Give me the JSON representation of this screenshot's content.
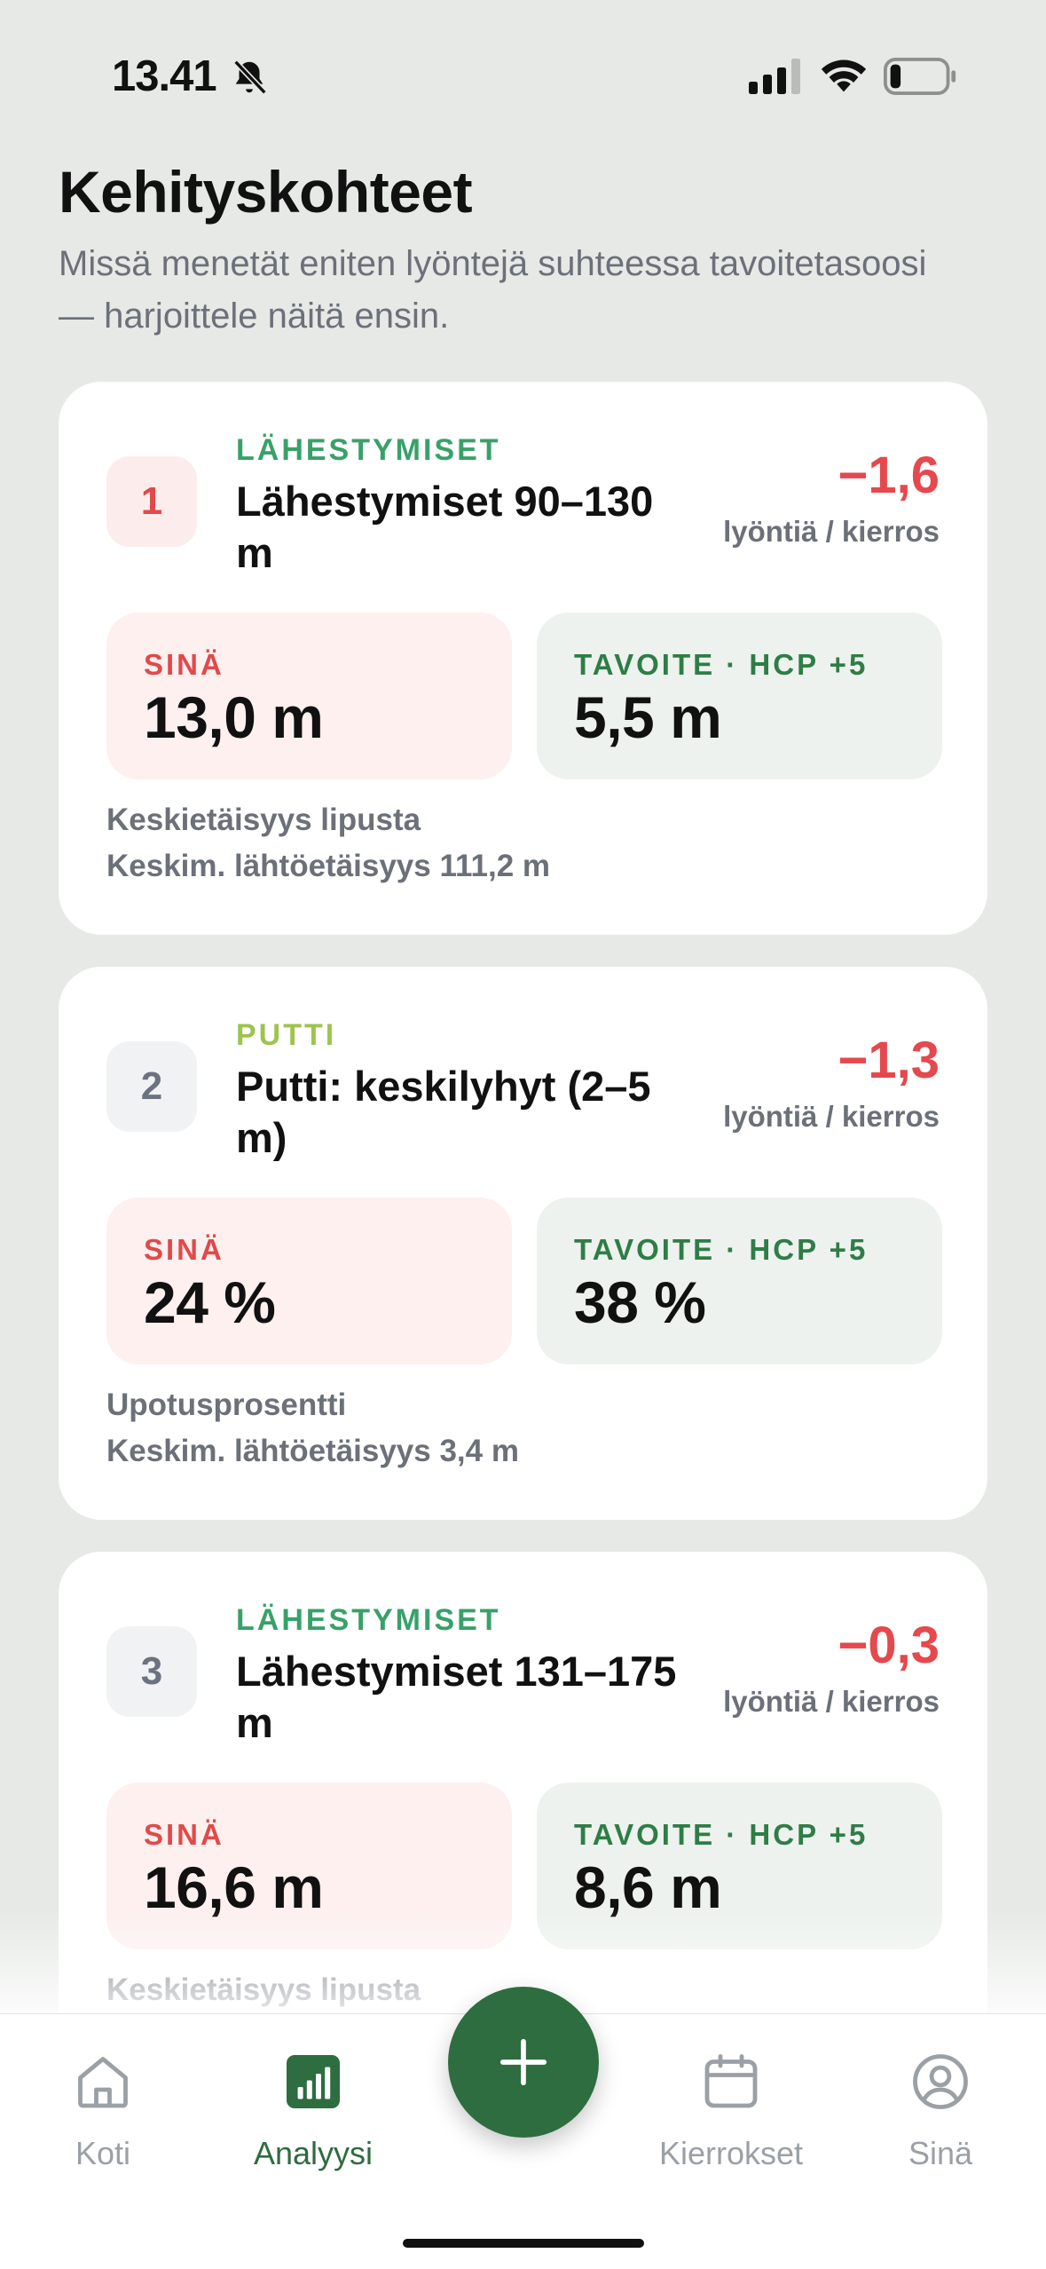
{
  "status_bar": {
    "time": "13.41",
    "icons": [
      "bell-slash-icon",
      "signal-icon",
      "wifi-icon",
      "battery-icon"
    ]
  },
  "header": {
    "title": "Kehityskohteet",
    "subtitle": "Missä menetät eniten lyöntejä suhteessa tavoitetasoosi — harjoittele näitä ensin."
  },
  "cards": [
    {
      "rank": "1",
      "category": "LÄHESTYMISET",
      "title": "Lähestymiset 90–130 m",
      "delta": "−1,6",
      "delta_unit": "lyöntiä / kierros",
      "you_label": "SINÄ",
      "you_value": "13,0 m",
      "goal_label": "TAVOITE · HCP +5",
      "goal_value": "5,5 m",
      "metric": "Keskietäisyys lipusta",
      "metric_sub": "Keskim. lähtöetäisyys 111,2 m"
    },
    {
      "rank": "2",
      "category": "PUTTI",
      "title": "Putti: keskilyhyt (2–5 m)",
      "delta": "−1,3",
      "delta_unit": "lyöntiä / kierros",
      "you_label": "SINÄ",
      "you_value": "24 %",
      "goal_label": "TAVOITE · HCP +5",
      "goal_value": "38 %",
      "metric": "Upotusprosentti",
      "metric_sub": "Keskim. lähtöetäisyys 3,4 m"
    },
    {
      "rank": "3",
      "category": "LÄHESTYMISET",
      "title": "Lähestymiset 131–175 m",
      "delta": "−0,3",
      "delta_unit": "lyöntiä / kierros",
      "you_label": "SINÄ",
      "you_value": "16,6 m",
      "goal_label": "TAVOITE · HCP +5",
      "goal_value": "8,6 m",
      "metric": "Keskietäisyys lipusta"
    }
  ],
  "colors": {
    "accent_green": "#2d6d40",
    "delta_red": "#e5484d",
    "category_green": "#38a169",
    "category_lime": "#9dc44d"
  },
  "nav": {
    "home": "Koti",
    "analysis": "Analyysi",
    "rounds": "Kierrokset",
    "you": "Sinä",
    "active": "analysis",
    "fab_icon": "plus-icon"
  }
}
